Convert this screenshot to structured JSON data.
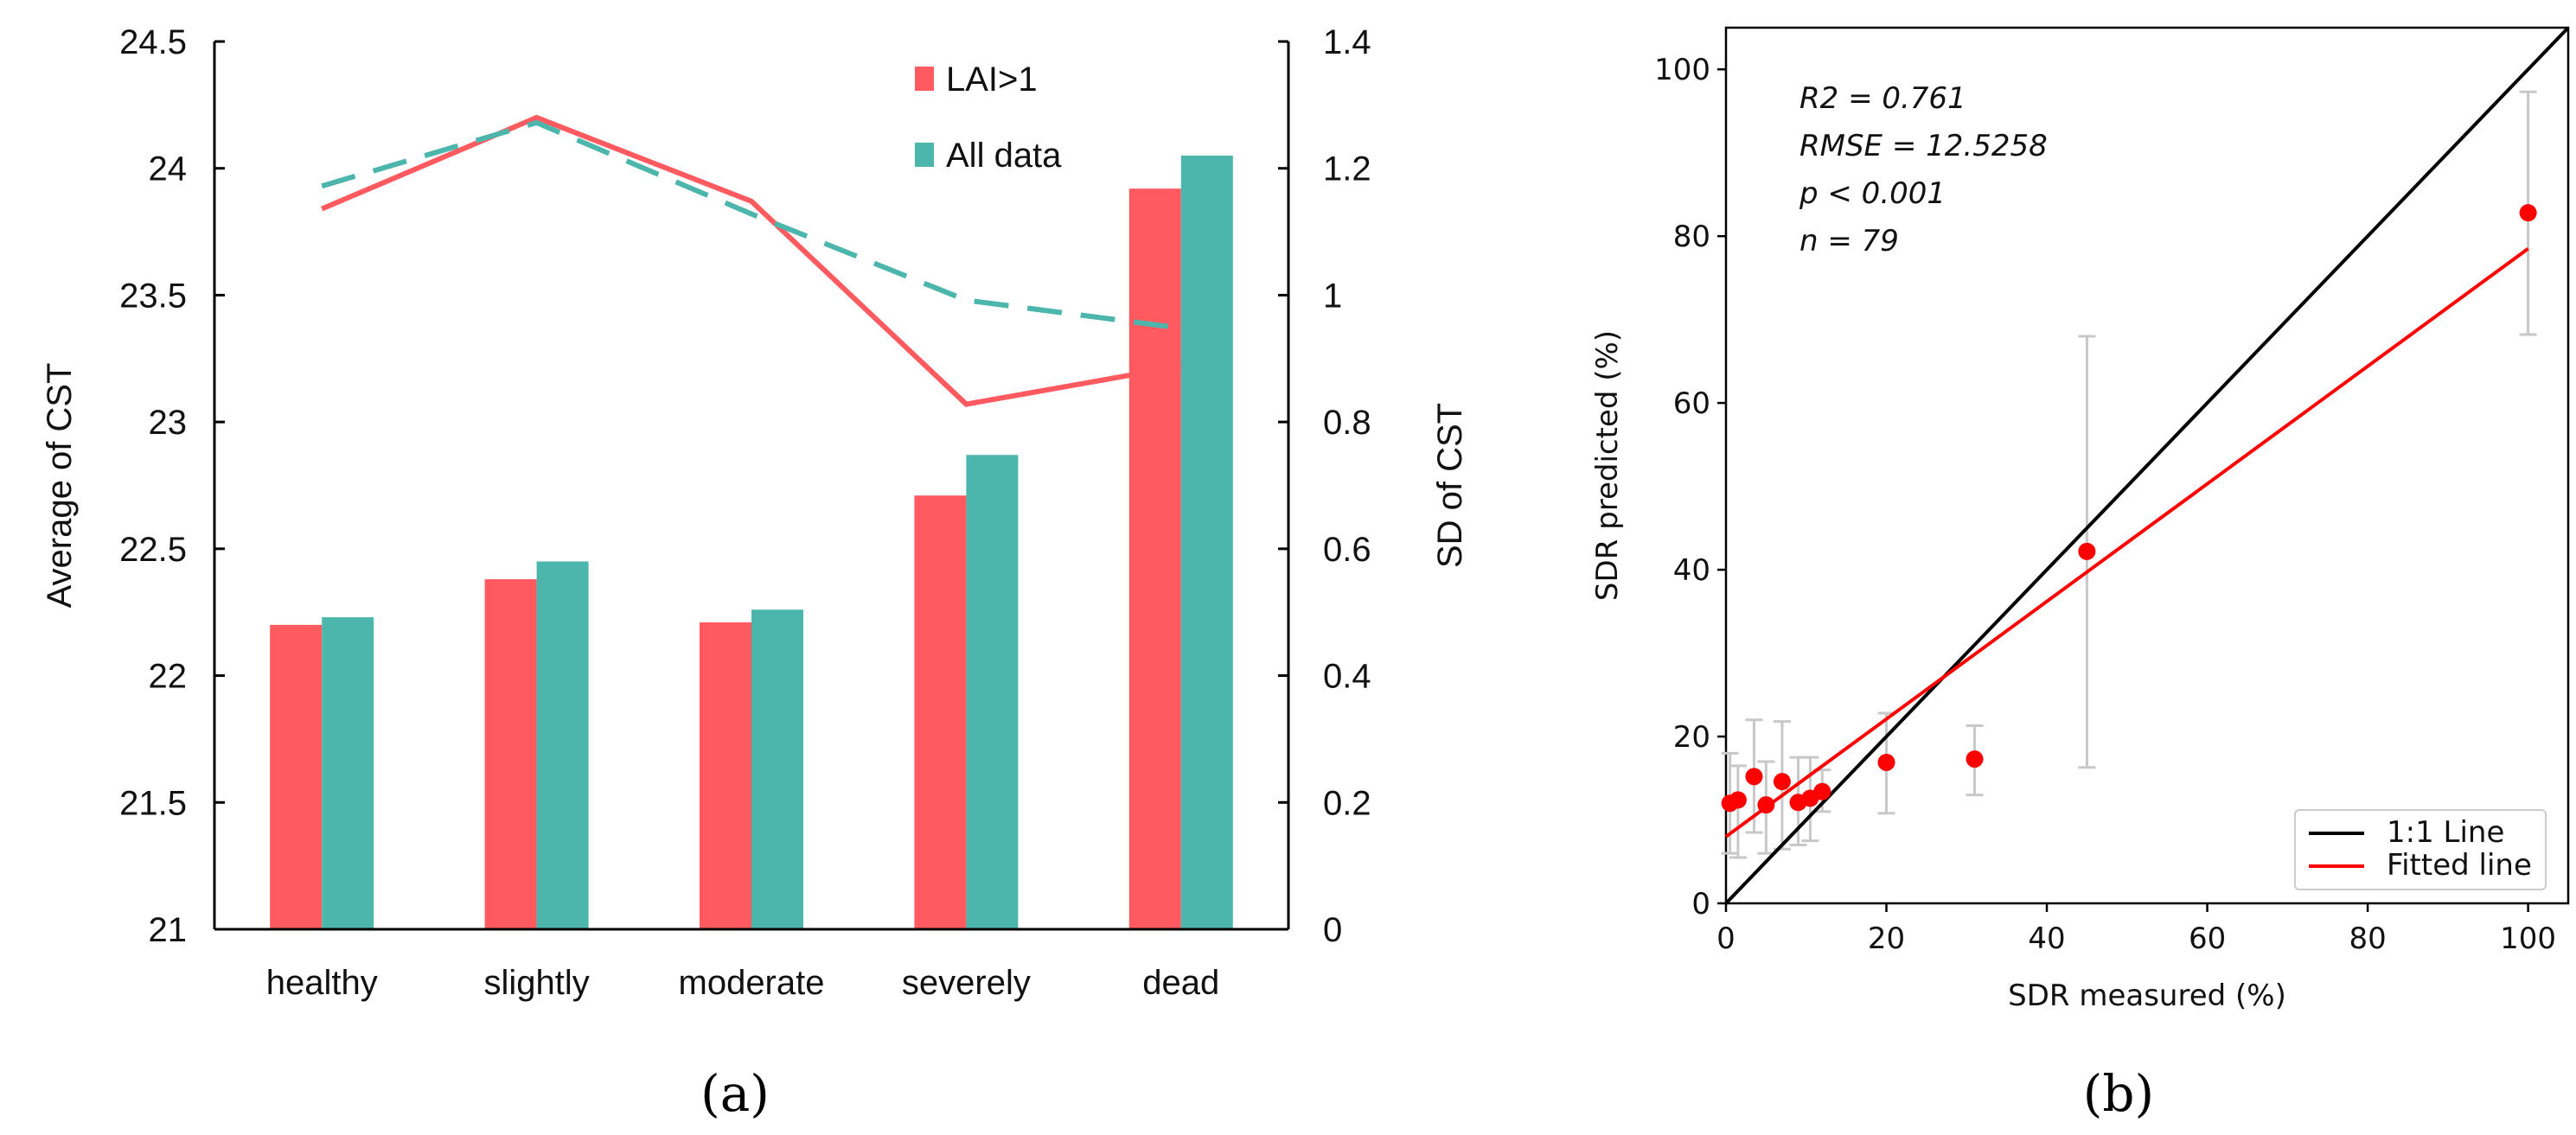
{
  "chart_data": [
    {
      "type": "bar",
      "panel_label": "(a)",
      "categories": [
        "healthy",
        "slightly",
        "moderate",
        "severely",
        "dead"
      ],
      "ylabel": "Average of CST",
      "ylim": [
        21,
        24.5
      ],
      "yticks": [
        "21",
        "21.5",
        "22",
        "22.5",
        "23",
        "23.5",
        "24",
        "24.5"
      ],
      "y2label": "SD of  CST",
      "y2lim": [
        0,
        1.4
      ],
      "y2ticks": [
        "0",
        "0.2",
        "0.4",
        "0.6",
        "0.8",
        "1",
        "1.2",
        "1.4"
      ],
      "legend_position": "top-right",
      "series": [
        {
          "name": "LAI>1",
          "color": "#FF5A5F",
          "bar_values": [
            22.2,
            22.38,
            22.21,
            22.71,
            23.92
          ],
          "sd_values": [
            1.136,
            1.28,
            1.148,
            0.828,
            0.888
          ],
          "sd_line_style": "solid"
        },
        {
          "name": "All data",
          "color": "#4DB6AC",
          "bar_values": [
            22.23,
            22.45,
            22.26,
            22.87,
            24.05
          ],
          "sd_values": [
            1.172,
            1.272,
            1.128,
            0.992,
            0.948
          ],
          "sd_line_style": "dashed"
        }
      ]
    },
    {
      "type": "scatter",
      "panel_label": "(b)",
      "xlabel": "SDR measured (%)",
      "ylabel": "SDR predicted (%)",
      "xlim": [
        0,
        105
      ],
      "ylim": [
        0,
        105
      ],
      "xticks": [
        "0",
        "20",
        "40",
        "60",
        "80",
        "100"
      ],
      "yticks": [
        "0",
        "20",
        "40",
        "60",
        "80",
        "100"
      ],
      "annotations": [
        "R2 = 0.761",
        "RMSE = 12.5258",
        "p < 0.001",
        "n = 79"
      ],
      "points": [
        {
          "x": 0.5,
          "y": 12.0,
          "lo": 6.0,
          "hi": 18.0
        },
        {
          "x": 1.5,
          "y": 12.4,
          "lo": 5.5,
          "hi": 16.5
        },
        {
          "x": 3.5,
          "y": 15.2,
          "lo": 8.5,
          "hi": 22.0
        },
        {
          "x": 5,
          "y": 11.8,
          "lo": 6.0,
          "hi": 17.0
        },
        {
          "x": 7,
          "y": 14.6,
          "lo": 6.5,
          "hi": 21.8
        },
        {
          "x": 9,
          "y": 12.1,
          "lo": 7.0,
          "hi": 17.5
        },
        {
          "x": 10.5,
          "y": 12.6,
          "lo": 7.5,
          "hi": 17.5
        },
        {
          "x": 12,
          "y": 13.4,
          "lo": 11.0,
          "hi": 16.0
        },
        {
          "x": 20,
          "y": 16.9,
          "lo": 10.8,
          "hi": 22.8
        },
        {
          "x": 31,
          "y": 17.3,
          "lo": 13.0,
          "hi": 21.3
        },
        {
          "x": 45,
          "y": 42.2,
          "lo": 16.3,
          "hi": 68.0
        },
        {
          "x": 100,
          "y": 82.8,
          "lo": 68.2,
          "hi": 97.3
        }
      ],
      "point_color": "#FF0000",
      "lines": [
        {
          "name": "1:1 Line",
          "color": "#000000",
          "from": [
            0,
            0
          ],
          "to": [
            105,
            105
          ]
        },
        {
          "name": "Fitted line",
          "color": "#FF0000",
          "from": [
            0,
            8.0
          ],
          "to": [
            100,
            78.5
          ]
        }
      ],
      "legend_position": "bottom-right"
    }
  ]
}
